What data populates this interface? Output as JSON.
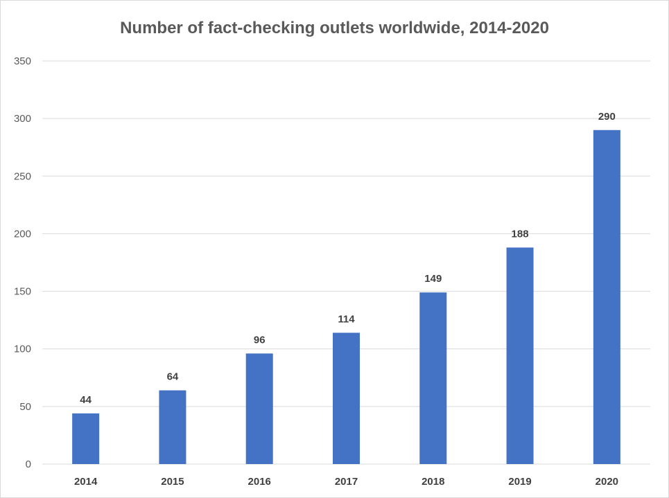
{
  "chart_data": {
    "type": "bar",
    "title": "Number of fact-checking outlets worldwide, 2014-2020",
    "xlabel": "",
    "ylabel": "",
    "categories": [
      "2014",
      "2015",
      "2016",
      "2017",
      "2018",
      "2019",
      "2020"
    ],
    "values": [
      44,
      64,
      96,
      114,
      149,
      188,
      290
    ],
    "data_labels": [
      "44",
      "64",
      "96",
      "114",
      "149",
      "188",
      "290"
    ],
    "ylim": [
      0,
      350
    ],
    "yticks": [
      0,
      50,
      100,
      150,
      200,
      250,
      300,
      350
    ],
    "ytick_labels": [
      "0",
      "50",
      "100",
      "150",
      "200",
      "250",
      "300",
      "350"
    ],
    "grid": true,
    "legend": "none",
    "bar_color": "#4472c4",
    "grid_color": "#d9d9d9"
  }
}
